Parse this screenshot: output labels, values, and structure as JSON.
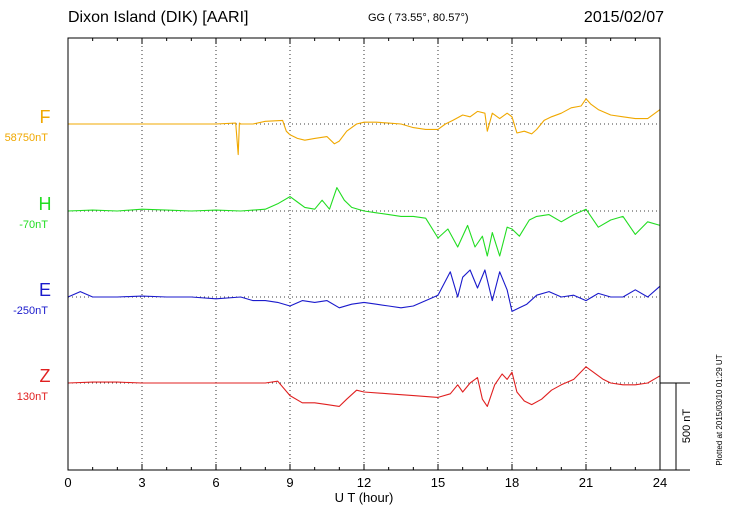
{
  "header": {
    "station": "Dixon Island (DIK)  [AARI]",
    "coords": "GG ( 73.55°,  80.57°)",
    "date": "2015/02/07"
  },
  "colors": {
    "F": "#f0a800",
    "H": "#22dd22",
    "E": "#1a1acc",
    "Z": "#e02020"
  },
  "chart_data": {
    "type": "line",
    "title": "Dixon Island (DIK)  [AARI]",
    "xlabel": "U T (hour)",
    "ylabel": "",
    "xlim": [
      0,
      24
    ],
    "xticks": [
      "0",
      "3",
      "6",
      "9",
      "12",
      "15",
      "18",
      "21",
      "24"
    ],
    "grid": true,
    "scale_bar": "500 nT",
    "plotted_note": "Plotted at 2015/03/10 01:29 UT",
    "series": [
      {
        "name": "F",
        "baseline_label": "58750nT",
        "x": [
          0,
          1,
          2,
          3,
          4,
          5,
          6,
          6.8,
          6.9,
          6.95,
          7.0,
          7.5,
          8,
          8.7,
          8.85,
          9.0,
          9.3,
          9.6,
          10,
          10.5,
          10.8,
          11.0,
          11.3,
          11.7,
          12,
          12.5,
          13,
          13.5,
          14,
          14.5,
          15,
          15.3,
          15.6,
          16,
          16.3,
          16.6,
          16.9,
          17.0,
          17.2,
          17.5,
          17.8,
          18.0,
          18.2,
          18.5,
          18.8,
          19.0,
          19.3,
          19.6,
          20.0,
          20.4,
          20.8,
          21.0,
          21.2,
          21.5,
          22.0,
          22.5,
          23.0,
          23.5,
          24.0
        ],
        "y": [
          0,
          0,
          0,
          0,
          0,
          0,
          0,
          5,
          -170,
          5,
          0,
          0,
          15,
          20,
          -40,
          -60,
          -80,
          -90,
          -80,
          -70,
          -110,
          -95,
          -40,
          0,
          10,
          10,
          5,
          0,
          -20,
          -30,
          -30,
          0,
          20,
          50,
          40,
          70,
          60,
          -40,
          60,
          30,
          60,
          40,
          -50,
          -40,
          -55,
          -30,
          20,
          40,
          60,
          90,
          100,
          140,
          110,
          80,
          50,
          40,
          30,
          30,
          80
        ]
      },
      {
        "name": "H",
        "baseline_label": "-70nT",
        "x": [
          0,
          1,
          2,
          3,
          4,
          5,
          6,
          7,
          8,
          8.5,
          9.0,
          9.3,
          9.6,
          10.0,
          10.3,
          10.6,
          10.9,
          11.2,
          11.5,
          12,
          12.5,
          13,
          13.5,
          14,
          14.5,
          15.0,
          15.4,
          15.8,
          16.2,
          16.5,
          16.8,
          17.0,
          17.2,
          17.5,
          17.8,
          18.0,
          18.3,
          18.7,
          19.0,
          19.5,
          20,
          20.5,
          21,
          21.5,
          22,
          22.5,
          23,
          23.5,
          24
        ],
        "y": [
          0,
          5,
          0,
          10,
          5,
          0,
          5,
          0,
          10,
          40,
          80,
          50,
          20,
          10,
          60,
          10,
          130,
          60,
          20,
          0,
          -10,
          -20,
          -30,
          -30,
          -40,
          -150,
          -100,
          -200,
          -80,
          -200,
          -140,
          -250,
          -120,
          -250,
          -90,
          -100,
          -140,
          -50,
          -30,
          -20,
          -60,
          -20,
          10,
          -90,
          -50,
          -30,
          -130,
          -60,
          -80
        ]
      },
      {
        "name": "E",
        "baseline_label": "-250nT",
        "x": [
          0,
          0.5,
          1,
          2,
          3,
          4,
          5,
          6,
          7,
          7.5,
          8,
          8.5,
          9,
          9.5,
          10,
          10.5,
          11,
          11.5,
          12,
          12.5,
          13,
          13.5,
          14,
          14.5,
          15.0,
          15.5,
          15.8,
          16.0,
          16.3,
          16.6,
          16.9,
          17.2,
          17.5,
          17.8,
          18.0,
          18.3,
          18.6,
          19.0,
          19.5,
          20,
          20.5,
          21,
          21.5,
          22,
          22.5,
          23,
          23.5,
          24
        ],
        "y": [
          0,
          30,
          0,
          0,
          5,
          0,
          0,
          -10,
          0,
          -20,
          -20,
          -30,
          -50,
          -20,
          -30,
          -20,
          -60,
          -40,
          -30,
          -40,
          -50,
          -60,
          -50,
          -20,
          10,
          140,
          0,
          110,
          150,
          50,
          150,
          -20,
          140,
          40,
          -80,
          -60,
          -40,
          10,
          30,
          0,
          10,
          -20,
          20,
          0,
          0,
          40,
          0,
          60
        ]
      },
      {
        "name": "Z",
        "baseline_label": "130nT",
        "x": [
          0,
          1,
          2,
          3,
          4,
          5,
          6,
          7,
          8,
          8.5,
          9.0,
          9.5,
          10.0,
          10.5,
          11.0,
          11.3,
          11.7,
          12,
          13,
          14,
          15.0,
          15.5,
          15.8,
          16.0,
          16.3,
          16.6,
          16.8,
          17.0,
          17.3,
          17.6,
          17.8,
          18.0,
          18.2,
          18.5,
          18.8,
          19.2,
          19.6,
          20,
          20.5,
          21.0,
          21.3,
          21.7,
          22,
          22.5,
          23,
          23.5,
          24
        ],
        "y": [
          0,
          5,
          5,
          0,
          0,
          0,
          0,
          0,
          0,
          10,
          -70,
          -110,
          -110,
          -120,
          -130,
          -90,
          -40,
          -50,
          -60,
          -70,
          -80,
          -60,
          -10,
          -50,
          0,
          30,
          -90,
          -130,
          -10,
          50,
          20,
          60,
          -50,
          -100,
          -120,
          -90,
          -40,
          -10,
          20,
          90,
          60,
          20,
          0,
          -10,
          -10,
          0,
          40
        ]
      }
    ]
  }
}
